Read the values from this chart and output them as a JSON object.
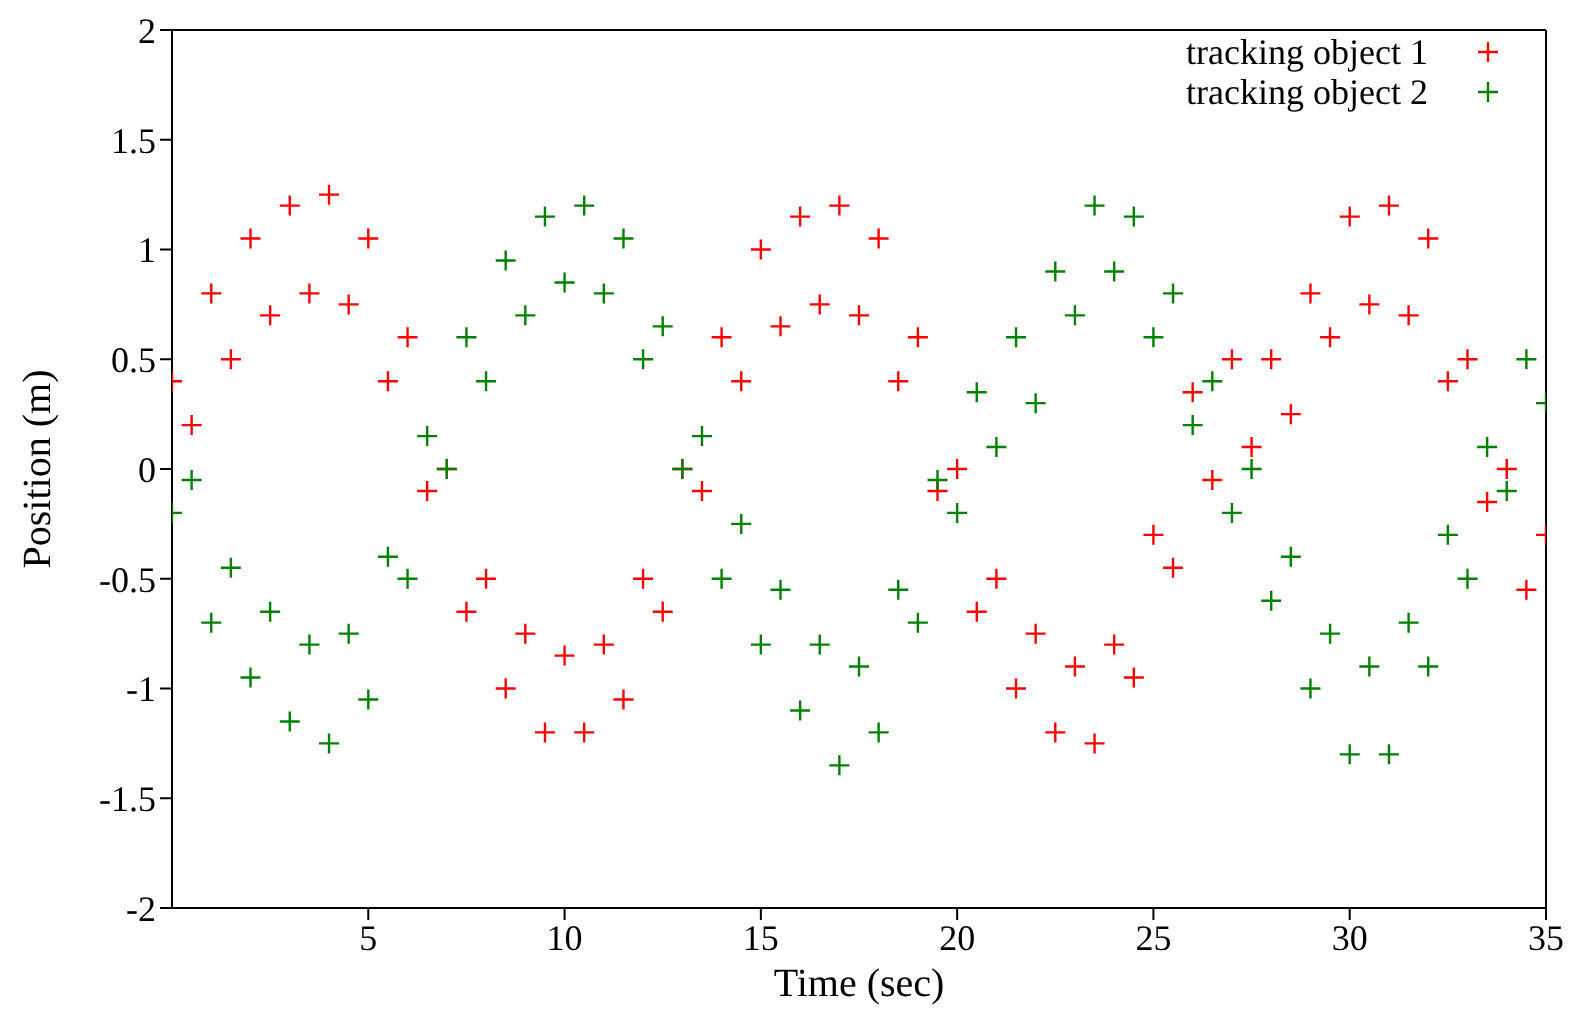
{
  "chart_data": {
    "type": "scatter",
    "xlabel": "Time (sec)",
    "ylabel": "Position (m)",
    "xlim": [
      0,
      35
    ],
    "xticks": [
      5,
      10,
      15,
      20,
      25,
      30,
      35
    ],
    "ylim": [
      -2,
      2
    ],
    "yticks": [
      -2,
      -1.5,
      -1,
      -0.5,
      0,
      0.5,
      1,
      1.5,
      2
    ],
    "legend": "top right",
    "marker": "cross",
    "series": [
      {
        "name": "tracking object 1",
        "color": "#ff0000",
        "x": [
          0,
          1,
          2,
          3,
          4,
          5,
          6,
          7,
          8,
          9,
          10,
          11,
          12,
          13,
          14,
          15,
          16,
          17,
          18,
          19,
          20,
          21,
          22,
          23,
          24,
          25,
          26,
          27,
          28,
          29,
          30,
          31,
          32,
          33,
          34,
          35,
          0.5,
          1.5,
          2.5,
          3.5,
          4.5,
          5.5,
          6.5,
          7.5,
          8.5,
          9.5,
          10.5,
          11.5,
          12.5,
          13.5,
          14.5,
          15.5,
          16.5,
          17.5,
          18.5,
          19.5,
          20.5,
          21.5,
          22.5,
          23.5,
          24.5,
          25.5,
          26.5,
          27.5,
          28.5,
          29.5,
          30.5,
          31.5,
          32.5,
          33.5,
          34.5
        ],
        "values": [
          0.4,
          0.8,
          1.05,
          1.2,
          1.25,
          1.05,
          0.6,
          0,
          -0.5,
          -0.75,
          -0.85,
          -0.8,
          -0.5,
          0,
          0.6,
          1.0,
          1.15,
          1.2,
          1.05,
          0.6,
          0,
          -0.5,
          -0.75,
          -0.9,
          -0.8,
          -0.3,
          0.35,
          0.5,
          0.5,
          0.8,
          1.15,
          1.2,
          1.05,
          0.5,
          0,
          -0.3,
          0.2,
          0.5,
          0.7,
          0.8,
          0.75,
          0.4,
          -0.1,
          -0.65,
          -1.0,
          -1.2,
          -1.2,
          -1.05,
          -0.65,
          -0.1,
          0.4,
          0.65,
          0.75,
          0.7,
          0.4,
          -0.1,
          -0.65,
          -1.0,
          -1.2,
          -1.25,
          -0.95,
          -0.45,
          -0.05,
          0.1,
          0.25,
          0.6,
          0.75,
          0.7,
          0.4,
          -0.15,
          -0.55
        ]
      },
      {
        "name": "tracking object 2",
        "color": "#008000",
        "x": [
          0,
          1,
          2,
          3,
          4,
          5,
          6,
          7,
          8,
          9,
          10,
          11,
          12,
          13,
          14,
          15,
          16,
          17,
          18,
          19,
          20,
          21,
          22,
          23,
          24,
          25,
          26,
          27,
          28,
          29,
          30,
          31,
          32,
          33,
          34,
          35,
          0.5,
          1.5,
          2.5,
          3.5,
          4.5,
          5.5,
          6.5,
          7.5,
          8.5,
          9.5,
          10.5,
          11.5,
          12.5,
          13.5,
          14.5,
          15.5,
          16.5,
          17.5,
          18.5,
          19.5,
          20.5,
          21.5,
          22.5,
          23.5,
          24.5,
          25.5,
          26.5,
          27.5,
          28.5,
          29.5,
          30.5,
          31.5,
          32.5,
          33.5,
          34.5
        ],
        "values": [
          -0.2,
          -0.7,
          -0.95,
          -1.15,
          -1.25,
          -1.05,
          -0.5,
          0,
          0.4,
          0.7,
          0.85,
          0.8,
          0.5,
          0,
          -0.5,
          -0.8,
          -1.1,
          -1.35,
          -1.2,
          -0.7,
          -0.2,
          0.1,
          0.3,
          0.7,
          0.9,
          0.6,
          0.2,
          -0.2,
          -0.6,
          -1.0,
          -1.3,
          -1.3,
          -0.9,
          -0.5,
          -0.1,
          0.3,
          -0.05,
          -0.45,
          -0.65,
          -0.8,
          -0.75,
          -0.4,
          0.15,
          0.6,
          0.95,
          1.15,
          1.2,
          1.05,
          0.65,
          0.15,
          -0.25,
          -0.55,
          -0.8,
          -0.9,
          -0.55,
          -0.05,
          0.35,
          0.6,
          0.9,
          1.2,
          1.15,
          0.8,
          0.4,
          0,
          -0.4,
          -0.75,
          -0.9,
          -0.7,
          -0.3,
          0.1,
          0.5
        ]
      }
    ]
  }
}
